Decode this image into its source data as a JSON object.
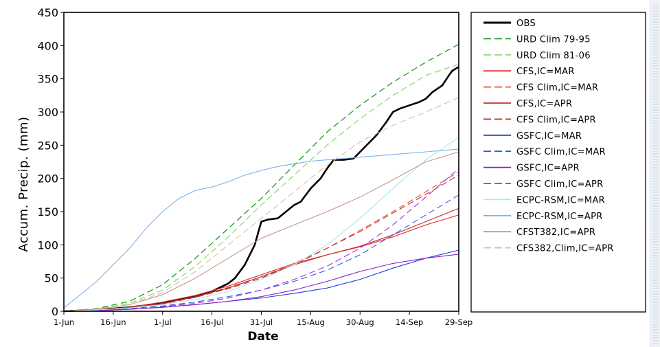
{
  "chart_data": {
    "type": "line",
    "xlabel": "Date",
    "ylabel": "Accum. Precip. (mm)",
    "xlim": [
      0,
      120
    ],
    "ylim": [
      0,
      450
    ],
    "x_ticks": [
      {
        "day": 0,
        "label": "1-Jun"
      },
      {
        "day": 15,
        "label": "16-Jun"
      },
      {
        "day": 30,
        "label": "1-Jul"
      },
      {
        "day": 45,
        "label": "16-Jul"
      },
      {
        "day": 60,
        "label": "31-Jul"
      },
      {
        "day": 75,
        "label": "15-Aug"
      },
      {
        "day": 90,
        "label": "30-Aug"
      },
      {
        "day": 105,
        "label": "14-Sep"
      },
      {
        "day": 120,
        "label": "29-Sep"
      }
    ],
    "y_ticks": [
      0,
      50,
      100,
      150,
      200,
      250,
      300,
      350,
      400,
      450
    ],
    "legend_position": "right",
    "series": [
      {
        "name": "OBS",
        "color": "#000000",
        "dash": "solid",
        "width": 2.6,
        "x": [
          0,
          10,
          20,
          25,
          30,
          35,
          40,
          45,
          50,
          52,
          55,
          58,
          60,
          62,
          65,
          70,
          72,
          75,
          78,
          80,
          82,
          85,
          88,
          90,
          93,
          95,
          98,
          100,
          102,
          105,
          108,
          110,
          112,
          115,
          117,
          118,
          120
        ],
        "y": [
          0,
          2,
          6,
          9,
          12,
          18,
          22,
          30,
          42,
          50,
          70,
          100,
          135,
          138,
          140,
          160,
          165,
          185,
          200,
          215,
          228,
          228,
          230,
          240,
          255,
          265,
          285,
          300,
          305,
          310,
          315,
          320,
          330,
          340,
          355,
          362,
          368
        ]
      },
      {
        "name": "URD Clim 79-95",
        "color": "#1b9a1b",
        "dash": "dashed",
        "width": 1.3,
        "x": [
          0,
          10,
          20,
          30,
          40,
          50,
          60,
          70,
          80,
          90,
          100,
          110,
          120
        ],
        "y": [
          0,
          4,
          15,
          40,
          80,
          125,
          170,
          220,
          270,
          310,
          345,
          375,
          402
        ]
      },
      {
        "name": "URD Clim 81-06",
        "color": "#86e070",
        "dash": "dashed",
        "width": 1.3,
        "x": [
          0,
          10,
          20,
          30,
          40,
          50,
          60,
          70,
          80,
          90,
          100,
          110,
          120
        ],
        "y": [
          0,
          3,
          12,
          32,
          68,
          112,
          160,
          205,
          250,
          290,
          325,
          355,
          372
        ]
      },
      {
        "name": "CFS,IC=MAR",
        "color": "#e8312e",
        "dash": "solid",
        "width": 1.1,
        "x": [
          0,
          10,
          20,
          30,
          40,
          50,
          60,
          70,
          80,
          90,
          100,
          110,
          120
        ],
        "y": [
          0,
          2,
          6,
          14,
          24,
          38,
          55,
          72,
          85,
          97,
          112,
          130,
          145
        ]
      },
      {
        "name": "CFS Clim,IC=MAR",
        "color": "#f04a3e",
        "dash": "dashed",
        "width": 1.1,
        "x": [
          0,
          10,
          20,
          30,
          40,
          50,
          60,
          70,
          80,
          90,
          100,
          110,
          120
        ],
        "y": [
          0,
          2,
          6,
          12,
          22,
          36,
          52,
          72,
          95,
          122,
          150,
          180,
          210
        ]
      },
      {
        "name": "CFS,IC=APR",
        "color": "#c0322f",
        "dash": "solid",
        "width": 1.1,
        "x": [
          0,
          10,
          20,
          30,
          40,
          50,
          60,
          70,
          80,
          90,
          100,
          110,
          120
        ],
        "y": [
          0,
          2,
          5,
          12,
          22,
          35,
          52,
          70,
          85,
          98,
          115,
          135,
          155
        ]
      },
      {
        "name": "CFS Clim,IC=APR",
        "color": "#b8302e",
        "dash": "dashed",
        "width": 1.1,
        "x": [
          0,
          10,
          20,
          30,
          40,
          50,
          60,
          70,
          80,
          90,
          100,
          110,
          120
        ],
        "y": [
          0,
          2,
          5,
          11,
          21,
          34,
          50,
          70,
          95,
          120,
          148,
          176,
          205
        ]
      },
      {
        "name": "GSFC,IC=MAR",
        "color": "#1f3de0",
        "dash": "solid",
        "width": 1.1,
        "x": [
          0,
          10,
          20,
          30,
          40,
          50,
          60,
          70,
          80,
          90,
          100,
          110,
          120
        ],
        "y": [
          0,
          1,
          3,
          6,
          10,
          15,
          20,
          27,
          35,
          48,
          65,
          80,
          92
        ]
      },
      {
        "name": "GSFC Clim,IC=MAR",
        "color": "#2f57e6",
        "dash": "dashed",
        "width": 1.1,
        "x": [
          0,
          10,
          20,
          30,
          40,
          50,
          60,
          70,
          80,
          90,
          100,
          110,
          120
        ],
        "y": [
          0,
          1,
          4,
          8,
          14,
          22,
          32,
          45,
          62,
          85,
          115,
          145,
          175
        ]
      },
      {
        "name": "GSFC,IC=APR",
        "color": "#8a1fc2",
        "dash": "solid",
        "width": 1.1,
        "x": [
          0,
          10,
          20,
          30,
          40,
          50,
          60,
          70,
          80,
          90,
          100,
          110,
          120
        ],
        "y": [
          0,
          1,
          3,
          6,
          10,
          15,
          22,
          32,
          45,
          60,
          72,
          80,
          86
        ]
      },
      {
        "name": "GSFC Clim,IC=APR",
        "color": "#a52be0",
        "dash": "dashed",
        "width": 1.1,
        "x": [
          0,
          10,
          20,
          30,
          40,
          50,
          60,
          70,
          80,
          90,
          100,
          110,
          120
        ],
        "y": [
          0,
          1,
          3,
          7,
          12,
          20,
          32,
          48,
          68,
          95,
          130,
          172,
          215
        ]
      },
      {
        "name": "ECPC-RSM,IC=MAR",
        "color": "#a9e8f2",
        "dash": "solid",
        "width": 1.1,
        "x": [
          0,
          10,
          20,
          30,
          40,
          50,
          60,
          70,
          80,
          90,
          100,
          110,
          120
        ],
        "y": [
          0,
          2,
          5,
          10,
          18,
          30,
          48,
          70,
          100,
          140,
          185,
          228,
          262
        ]
      },
      {
        "name": "ECPC-RSM,IC=APR",
        "color": "#7bb2ea",
        "dash": "solid",
        "width": 1.1,
        "x": [
          0,
          5,
          10,
          15,
          20,
          25,
          30,
          35,
          40,
          45,
          50,
          55,
          60,
          65,
          70,
          75,
          80,
          85,
          90,
          95,
          100,
          105,
          110,
          115,
          120
        ],
        "y": [
          5,
          25,
          45,
          70,
          95,
          125,
          150,
          170,
          182,
          187,
          195,
          205,
          212,
          218,
          222,
          226,
          228,
          230,
          232,
          234,
          236,
          238,
          240,
          242,
          244
        ]
      },
      {
        "name": "CFST382,IC=APR",
        "color": "#c69586",
        "dash": "solid",
        "width": 1.1,
        "x": [
          0,
          10,
          20,
          30,
          40,
          50,
          60,
          70,
          80,
          90,
          100,
          110,
          120
        ],
        "y": [
          0,
          3,
          10,
          25,
          50,
          80,
          110,
          130,
          150,
          172,
          198,
          225,
          240
        ]
      },
      {
        "name": "CFS382,Clim,IC=APR",
        "color": "#deb8ac",
        "dash": "dashed",
        "width": 1.1,
        "x": [
          0,
          10,
          20,
          30,
          40,
          50,
          60,
          70,
          80,
          90,
          100,
          110,
          120
        ],
        "y": [
          0,
          3,
          10,
          28,
          60,
          100,
          140,
          180,
          220,
          255,
          280,
          300,
          322
        ]
      }
    ]
  }
}
